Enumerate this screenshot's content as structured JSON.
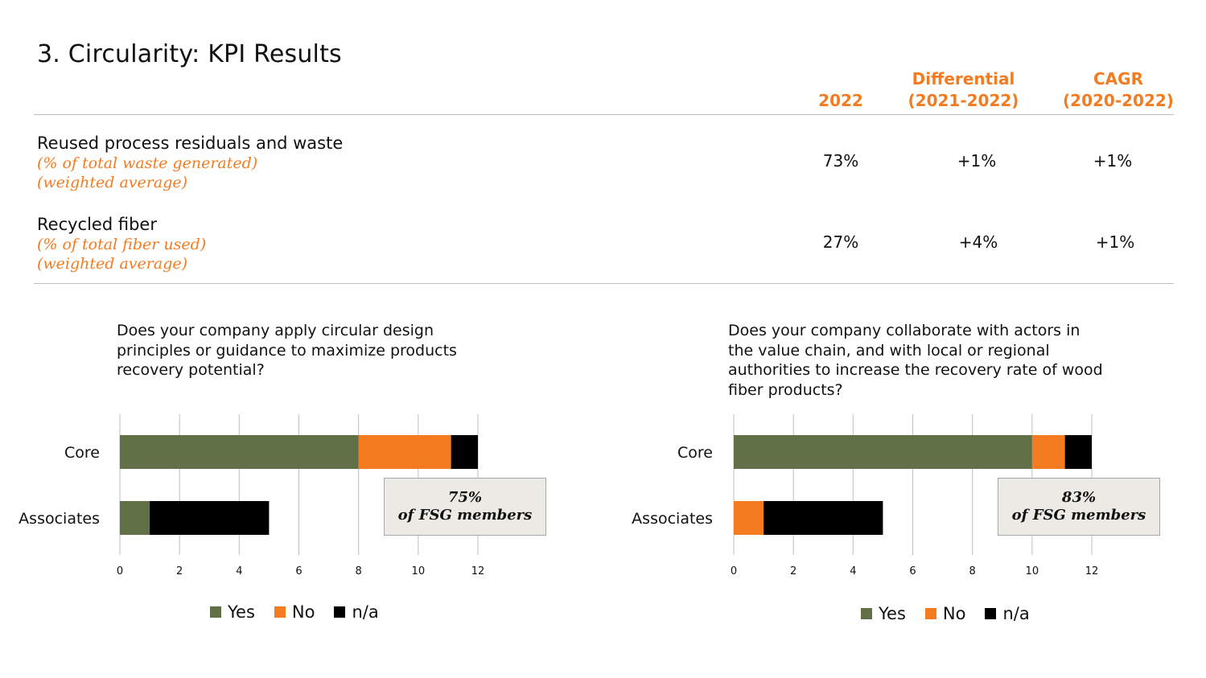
{
  "title": "3. Circularity: KPI Results",
  "table": {
    "columns": {
      "year": "2022",
      "differential": [
        "Differential",
        "(2021-2022)"
      ],
      "cagr": [
        "CAGR",
        "(2020-2022)"
      ]
    },
    "rows": [
      {
        "name": "Reused process residuals and waste",
        "sub1": "(% of total waste generated)",
        "sub2": "(weighted average)",
        "value_2022": "73%",
        "differential": "+1%",
        "cagr": "+1%"
      },
      {
        "name": "Recycled fiber",
        "sub1": "(% of total fiber used)",
        "sub2": "(weighted average)",
        "value_2022": "27%",
        "differential": "+4%",
        "cagr": "+1%"
      }
    ]
  },
  "colors": {
    "yes": "#627048",
    "no": "#f47b20",
    "na": "#000000",
    "accent": "#f47b20",
    "grid": "#bfbfbf"
  },
  "legend": {
    "yes": "Yes",
    "no": "No",
    "na": "n/a"
  },
  "chart_data": [
    {
      "type": "bar",
      "orientation": "horizontal",
      "stacked": true,
      "title": "Does your company apply circular design principles or guidance to maximize products recovery potential?",
      "categories": [
        "Core",
        "Associates"
      ],
      "series": [
        {
          "name": "Yes",
          "values": [
            8,
            1
          ]
        },
        {
          "name": "No",
          "values": [
            3.1,
            0
          ]
        },
        {
          "name": "n/a",
          "values": [
            0.9,
            4
          ]
        }
      ],
      "xlim": [
        0,
        12
      ],
      "xticks": [
        0,
        2,
        4,
        6,
        8,
        10,
        12
      ],
      "grid": true,
      "legend_position": "bottom",
      "annotation": [
        "75%",
        "of FSG members"
      ]
    },
    {
      "type": "bar",
      "orientation": "horizontal",
      "stacked": true,
      "title": "Does your company collaborate with actors in the value chain, and with local or regional authorities to increase the recovery rate of wood fiber products?",
      "categories": [
        "Core",
        "Associates"
      ],
      "series": [
        {
          "name": "Yes",
          "values": [
            10,
            0
          ]
        },
        {
          "name": "No",
          "values": [
            1.1,
            1
          ]
        },
        {
          "name": "n/a",
          "values": [
            0.9,
            4
          ]
        }
      ],
      "xlim": [
        0,
        12
      ],
      "xticks": [
        0,
        2,
        4,
        6,
        8,
        10,
        12
      ],
      "grid": true,
      "legend_position": "bottom",
      "annotation": [
        "83%",
        "of FSG members"
      ]
    }
  ]
}
